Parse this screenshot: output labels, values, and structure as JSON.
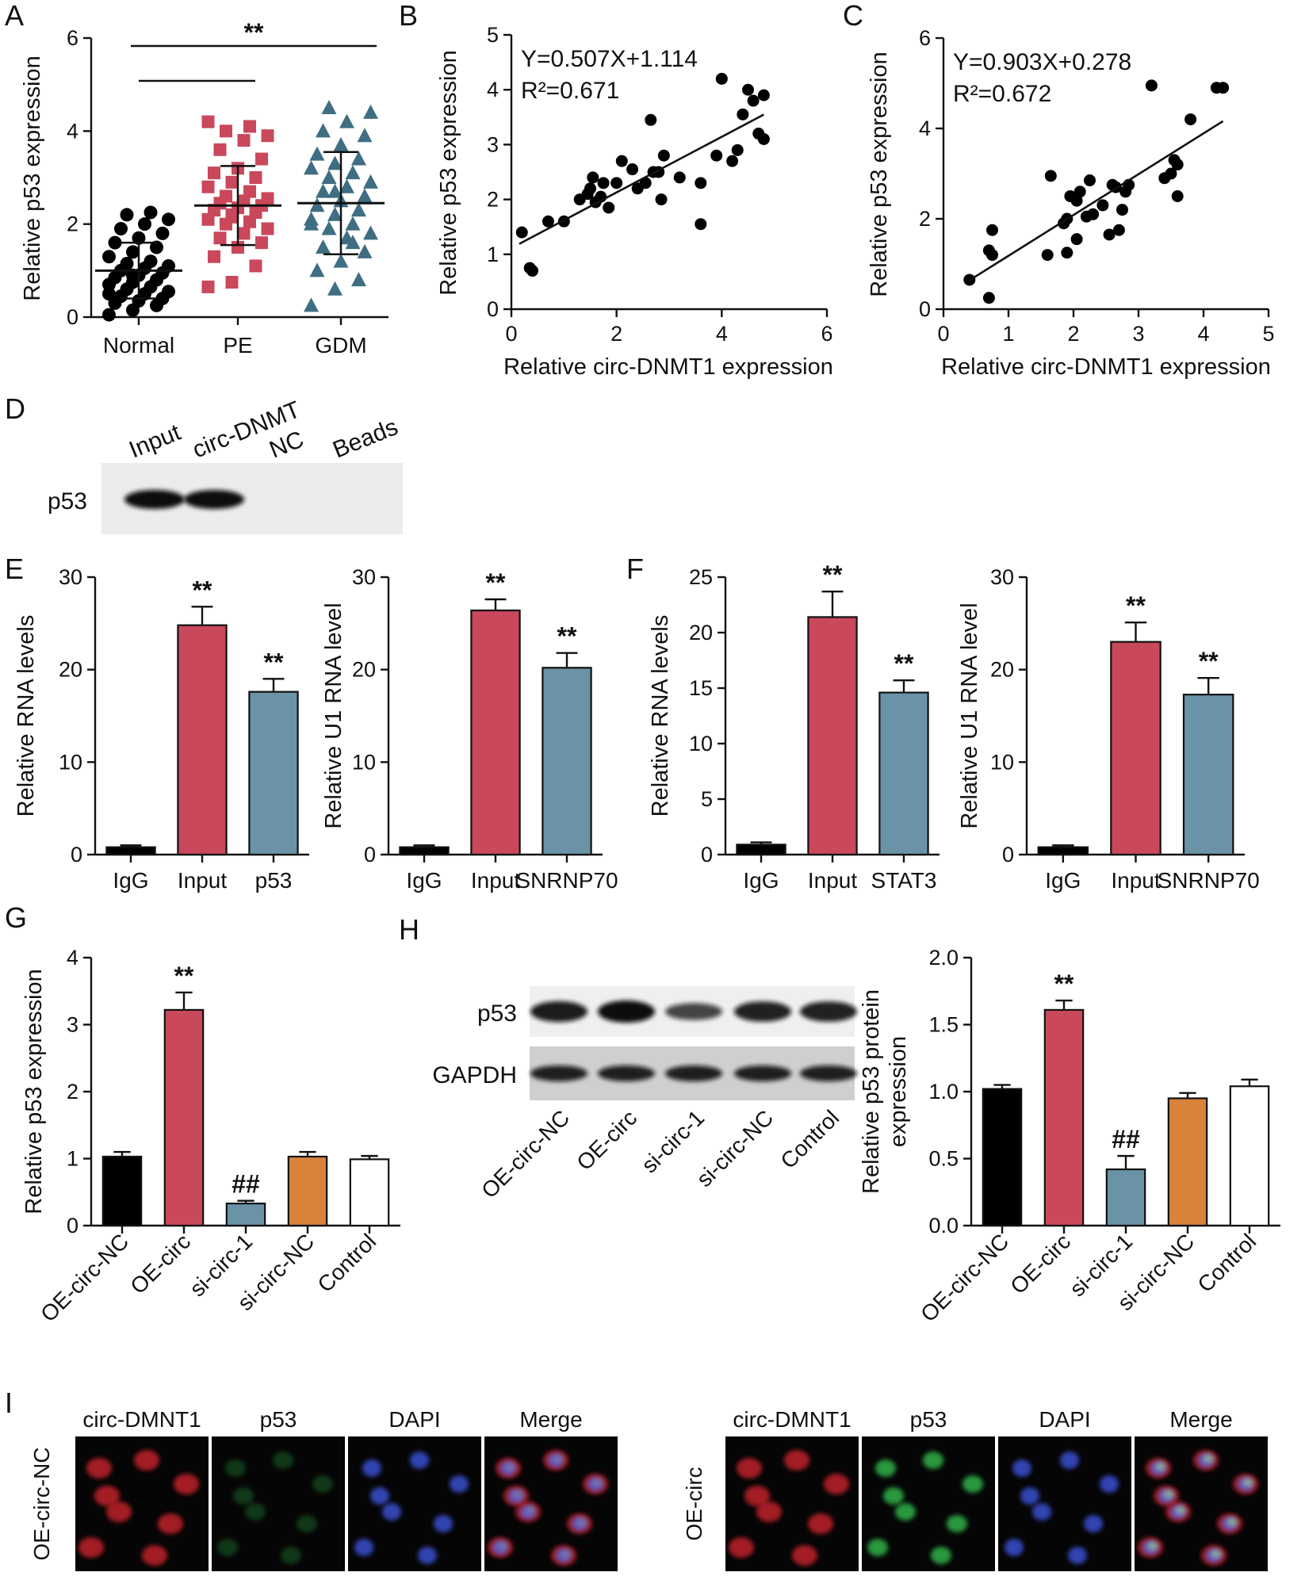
{
  "colors": {
    "black": "#000000",
    "red": "#c9485b",
    "blue": "#6a93a8",
    "orange": "#d9823b",
    "white": "#ffffff",
    "teal": "#3f6e83"
  },
  "panels": {
    "A": "A",
    "B": "B",
    "C": "C",
    "D": "D",
    "E": "E",
    "F": "F",
    "G": "G",
    "H": "H",
    "I": "I"
  },
  "chart_data": [
    {
      "id": "A",
      "type": "scatter",
      "ylabel": "Relative p53 expression",
      "ylim": [
        0,
        6
      ],
      "yticks": [
        "0",
        "2",
        "4",
        "6"
      ],
      "categories": [
        "Normal",
        "PE",
        "GDM"
      ],
      "means": [
        1.0,
        2.4,
        2.45
      ],
      "sd": [
        0.6,
        0.85,
        1.1
      ],
      "significance": "**",
      "series": [
        {
          "name": "Normal",
          "marker": "circle",
          "color": "#000000",
          "values": [
            0.05,
            0.15,
            0.25,
            0.3,
            0.35,
            0.4,
            0.45,
            0.5,
            0.55,
            0.6,
            0.65,
            0.7,
            0.75,
            0.8,
            0.85,
            0.9,
            0.95,
            1.0,
            1.05,
            1.1,
            1.15,
            1.2,
            1.3,
            1.4,
            1.5,
            1.6,
            1.7,
            1.8,
            1.9,
            2.0,
            2.1,
            2.2,
            2.25,
            0.5,
            0.9
          ]
        },
        {
          "name": "PE",
          "marker": "square",
          "color": "#c9485b",
          "values": [
            0.65,
            0.75,
            1.1,
            1.3,
            1.5,
            1.6,
            1.7,
            1.8,
            1.9,
            2.0,
            2.05,
            2.1,
            2.2,
            2.25,
            2.3,
            2.35,
            2.4,
            2.45,
            2.5,
            2.55,
            2.6,
            2.7,
            2.8,
            2.9,
            3.0,
            3.1,
            3.2,
            3.4,
            3.6,
            3.8,
            3.9,
            4.0,
            4.1,
            4.2,
            2.15
          ]
        },
        {
          "name": "GDM",
          "marker": "triangle",
          "color": "#3f6e83",
          "values": [
            0.25,
            0.6,
            0.8,
            1.0,
            1.2,
            1.4,
            1.5,
            1.7,
            1.8,
            1.9,
            2.0,
            2.1,
            2.2,
            2.3,
            2.4,
            2.5,
            2.6,
            2.7,
            2.8,
            2.9,
            3.0,
            3.1,
            3.2,
            3.3,
            3.4,
            3.5,
            3.7,
            3.9,
            4.0,
            4.2,
            4.4,
            4.5,
            1.6,
            2.0,
            2.7
          ]
        }
      ]
    },
    {
      "id": "B",
      "type": "scatter",
      "xlabel": "Relative circ-DNMT1 expression",
      "ylabel": "Relative p53 expression",
      "xlim": [
        0,
        6
      ],
      "ylim": [
        0,
        5
      ],
      "xticks": [
        "0",
        "2",
        "4",
        "6"
      ],
      "yticks": [
        "0",
        "1",
        "2",
        "3",
        "4",
        "5"
      ],
      "equation": "Y=0.507X+1.114",
      "r2": "R²=0.671",
      "fit": {
        "slope": 0.507,
        "intercept": 1.114,
        "x0": 0.15,
        "x1": 4.8
      },
      "points": [
        [
          0.2,
          1.4
        ],
        [
          0.35,
          0.75
        ],
        [
          0.4,
          0.7
        ],
        [
          0.7,
          1.6
        ],
        [
          1.0,
          1.6
        ],
        [
          1.3,
          2.0
        ],
        [
          1.45,
          2.1
        ],
        [
          1.5,
          2.2
        ],
        [
          1.55,
          2.4
        ],
        [
          1.6,
          1.95
        ],
        [
          1.7,
          2.05
        ],
        [
          1.75,
          2.3
        ],
        [
          1.85,
          1.85
        ],
        [
          2.0,
          2.3
        ],
        [
          2.1,
          2.7
        ],
        [
          2.3,
          2.55
        ],
        [
          2.4,
          2.2
        ],
        [
          2.55,
          2.3
        ],
        [
          2.65,
          3.45
        ],
        [
          2.7,
          2.5
        ],
        [
          2.8,
          2.5
        ],
        [
          2.85,
          2.0
        ],
        [
          2.9,
          2.8
        ],
        [
          3.2,
          2.4
        ],
        [
          3.6,
          1.55
        ],
        [
          3.6,
          2.3
        ],
        [
          3.9,
          2.8
        ],
        [
          4.0,
          4.2
        ],
        [
          4.2,
          2.7
        ],
        [
          4.3,
          2.9
        ],
        [
          4.4,
          3.55
        ],
        [
          4.5,
          4.0
        ],
        [
          4.6,
          3.8
        ],
        [
          4.7,
          3.2
        ],
        [
          4.8,
          3.1
        ],
        [
          4.8,
          3.9
        ]
      ]
    },
    {
      "id": "C",
      "type": "scatter",
      "xlabel": "Relative circ-DNMT1 expression",
      "ylabel": "Relative p53 expression",
      "xlim": [
        0,
        5
      ],
      "ylim": [
        0,
        6
      ],
      "xticks": [
        "0",
        "1",
        "2",
        "3",
        "4",
        "5"
      ],
      "yticks": [
        "0",
        "2",
        "4",
        "6"
      ],
      "equation": "Y=0.903X+0.278",
      "r2": "R²=0.672",
      "fit": {
        "slope": 0.903,
        "intercept": 0.278,
        "x0": 0.4,
        "x1": 4.3
      },
      "points": [
        [
          0.4,
          0.65
        ],
        [
          0.7,
          0.25
        ],
        [
          0.7,
          1.3
        ],
        [
          0.75,
          1.2
        ],
        [
          0.75,
          1.75
        ],
        [
          1.6,
          1.2
        ],
        [
          1.65,
          2.95
        ],
        [
          1.85,
          1.9
        ],
        [
          1.9,
          1.25
        ],
        [
          1.9,
          2.0
        ],
        [
          1.95,
          2.5
        ],
        [
          2.05,
          1.55
        ],
        [
          2.05,
          2.4
        ],
        [
          2.1,
          2.6
        ],
        [
          2.2,
          2.05
        ],
        [
          2.25,
          2.85
        ],
        [
          2.3,
          2.1
        ],
        [
          2.45,
          2.3
        ],
        [
          2.55,
          1.65
        ],
        [
          2.6,
          2.75
        ],
        [
          2.65,
          2.7
        ],
        [
          2.7,
          1.75
        ],
        [
          2.75,
          2.2
        ],
        [
          2.8,
          2.6
        ],
        [
          2.85,
          2.75
        ],
        [
          3.2,
          4.95
        ],
        [
          3.4,
          2.9
        ],
        [
          3.5,
          3.0
        ],
        [
          3.55,
          3.3
        ],
        [
          3.6,
          2.5
        ],
        [
          3.6,
          3.2
        ],
        [
          3.8,
          4.2
        ],
        [
          4.2,
          4.9
        ],
        [
          4.3,
          4.9
        ]
      ]
    },
    {
      "id": "E1",
      "type": "bar",
      "ylabel": "Relative RNA levels",
      "ylim": [
        0,
        30
      ],
      "yticks": [
        "0",
        "10",
        "20",
        "30"
      ],
      "categories": [
        "IgG",
        "Input",
        "p53"
      ],
      "values": [
        0.8,
        24.8,
        17.6
      ],
      "errors": [
        0.2,
        2.0,
        1.4
      ],
      "colors": [
        "#000000",
        "#c9485b",
        "#6a93a8"
      ],
      "stars": [
        "",
        "**",
        "**"
      ]
    },
    {
      "id": "E2",
      "type": "bar",
      "ylabel": "Relative U1 RNA level",
      "ylim": [
        0,
        30
      ],
      "yticks": [
        "0",
        "10",
        "20",
        "30"
      ],
      "categories": [
        "IgG",
        "Input",
        "SNRNP70"
      ],
      "values": [
        0.8,
        26.4,
        20.2
      ],
      "errors": [
        0.2,
        1.2,
        1.6
      ],
      "colors": [
        "#000000",
        "#c9485b",
        "#6a93a8"
      ],
      "stars": [
        "",
        "**",
        "**"
      ]
    },
    {
      "id": "F1",
      "type": "bar",
      "ylabel": "Relative RNA levels",
      "ylim": [
        0,
        25
      ],
      "yticks": [
        "0",
        "5",
        "10",
        "15",
        "20",
        "25"
      ],
      "categories": [
        "IgG",
        "Input",
        "STAT3"
      ],
      "values": [
        0.9,
        21.4,
        14.6
      ],
      "errors": [
        0.2,
        2.3,
        1.1
      ],
      "colors": [
        "#000000",
        "#c9485b",
        "#6a93a8"
      ],
      "stars": [
        "",
        "**",
        "**"
      ]
    },
    {
      "id": "F2",
      "type": "bar",
      "ylabel": "Relative U1 RNA level",
      "ylim": [
        0,
        30
      ],
      "yticks": [
        "0",
        "10",
        "20",
        "30"
      ],
      "categories": [
        "IgG",
        "Input",
        "SNRNP70"
      ],
      "values": [
        0.8,
        23.0,
        17.3
      ],
      "errors": [
        0.2,
        2.1,
        1.8
      ],
      "colors": [
        "#000000",
        "#c9485b",
        "#6a93a8"
      ],
      "stars": [
        "",
        "**",
        "**"
      ]
    },
    {
      "id": "G",
      "type": "bar",
      "ylabel": "Relative p53 expression",
      "ylim": [
        0,
        4
      ],
      "yticks": [
        "0",
        "1",
        "2",
        "3",
        "4"
      ],
      "categories": [
        "OE-circ-NC",
        "OE-circ",
        "si-circ-1",
        "si-circ-NC",
        "Control"
      ],
      "values": [
        1.03,
        3.22,
        0.33,
        1.03,
        0.99
      ],
      "errors": [
        0.07,
        0.26,
        0.04,
        0.07,
        0.05
      ],
      "colors": [
        "#000000",
        "#c9485b",
        "#6a93a8",
        "#d9823b",
        "#ffffff"
      ],
      "stars": [
        "",
        "**",
        "##",
        "",
        ""
      ]
    },
    {
      "id": "H",
      "type": "bar",
      "ylabel": "Relative p53 protein expression",
      "ylabel_lines": [
        "Relative p53 protein",
        "expression"
      ],
      "ylim": [
        0,
        2
      ],
      "yticks": [
        "0.0",
        "0.5",
        "1.0",
        "1.5",
        "2.0"
      ],
      "categories": [
        "OE-circ-NC",
        "OE-circ",
        "si-circ-1",
        "si-circ-NC",
        "Control"
      ],
      "values": [
        1.02,
        1.61,
        0.42,
        0.95,
        1.04
      ],
      "errors": [
        0.03,
        0.07,
        0.1,
        0.04,
        0.05
      ],
      "colors": [
        "#000000",
        "#c9485b",
        "#6a93a8",
        "#d9823b",
        "#ffffff"
      ],
      "stars": [
        "",
        "**",
        "##",
        "",
        ""
      ]
    }
  ],
  "blot_D": {
    "lane_labels": [
      "Input",
      "circ-DNMT",
      "NC",
      "Beads"
    ],
    "row_label": "p53",
    "band_intensity": [
      1.0,
      1.0,
      0,
      0
    ]
  },
  "blot_H": {
    "rows": [
      {
        "label": "p53",
        "intensity": [
          0.85,
          1.0,
          0.45,
          0.8,
          0.8
        ]
      },
      {
        "label": "GAPDH",
        "intensity": [
          0.8,
          0.8,
          0.8,
          0.8,
          0.8
        ]
      }
    ],
    "lane_labels": [
      "OE-circ-NC",
      "OE-circ",
      "si-circ-1",
      "si-circ-NC",
      "Control"
    ]
  },
  "micro_I": {
    "channels": [
      "circ-DMNT1",
      "p53",
      "DAPI",
      "Merge"
    ],
    "groups": [
      {
        "label": "OE-circ-NC",
        "p53_level": 0.35
      },
      {
        "label": "OE-circ",
        "p53_level": 1.0
      }
    ]
  }
}
